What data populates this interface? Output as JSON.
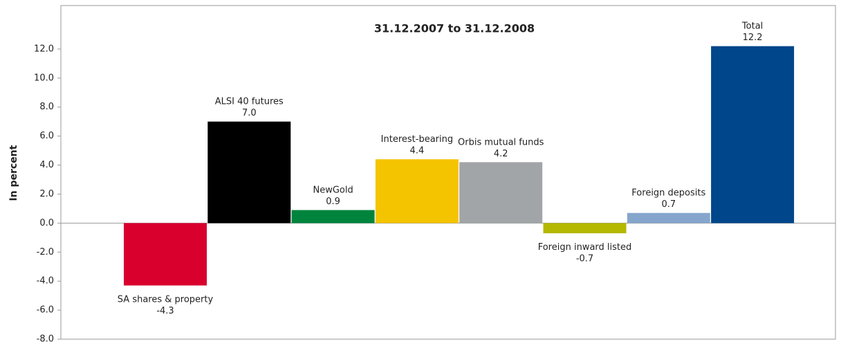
{
  "chart_data": {
    "type": "bar",
    "title": "31.12.2007 to 31.12.2008",
    "y_label": "In percent",
    "categories": [
      "SA shares & property",
      "ALSI 40 futures",
      "NewGold",
      "Interest-bearing",
      "Orbis mutual funds",
      "Foreign inward listed",
      "Foreign deposits",
      "Total"
    ],
    "values": [
      -4.3,
      7.0,
      0.9,
      4.4,
      4.2,
      -0.7,
      0.7,
      12.2
    ],
    "value_labels": [
      "-4.3",
      "7.0",
      "0.9",
      "4.4",
      "4.2",
      "-0.7",
      "0.7",
      "12.2"
    ],
    "colors": [
      "#d9002e",
      "#000000",
      "#00843d",
      "#f5c400",
      "#a2a5a8",
      "#b5b800",
      "#85a5cc",
      "#00468b"
    ],
    "ylim": [
      -8,
      15
    ],
    "yticks": [
      {
        "value": -8,
        "label": "-8.0"
      },
      {
        "value": -6,
        "label": "-6.0"
      },
      {
        "value": -4,
        "label": "-4.0"
      },
      {
        "value": -2,
        "label": "-2.0"
      },
      {
        "value": 0,
        "label": "0.0"
      },
      {
        "value": 2,
        "label": "2.0"
      },
      {
        "value": 4,
        "label": "4.0"
      },
      {
        "value": 6,
        "label": "6.0"
      },
      {
        "value": 8,
        "label": "8.0"
      },
      {
        "value": 10,
        "label": "10.0"
      },
      {
        "value": 12,
        "label": "12.0"
      }
    ],
    "grid": false
  }
}
